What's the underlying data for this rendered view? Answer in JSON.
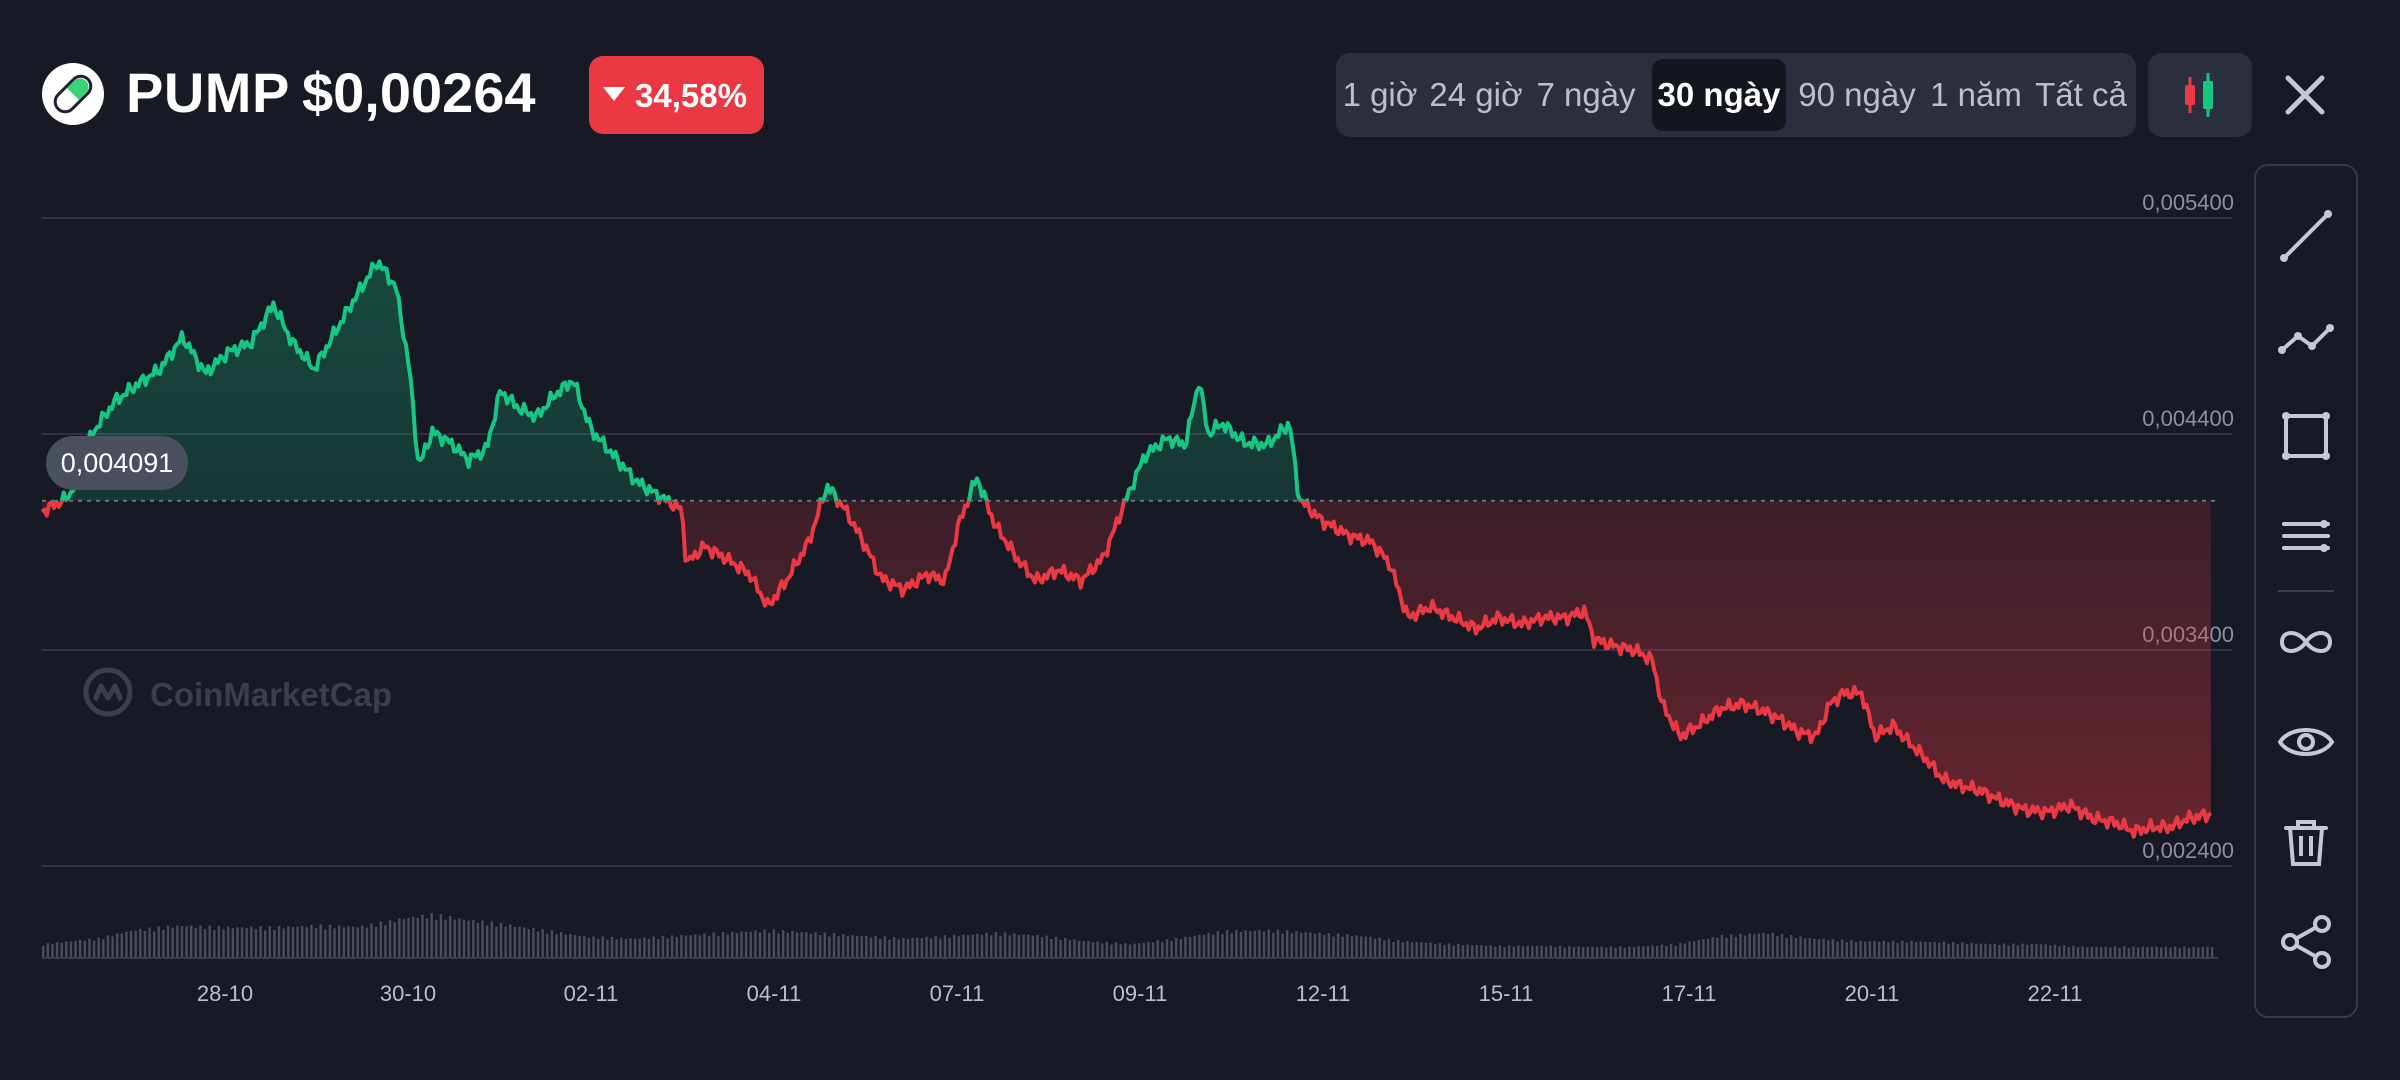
{
  "header": {
    "coin_symbol": "PUMP",
    "price": "$0,00264",
    "change_percent": "34,58%",
    "change_direction": "down",
    "close_icon": "close-icon",
    "chart_type_icon": "candlestick-icon"
  },
  "time_ranges": [
    {
      "label": "1 giờ",
      "active": false
    },
    {
      "label": "24 giờ",
      "active": false
    },
    {
      "label": "7 ngày",
      "active": false
    },
    {
      "label": "30 ngày",
      "active": true
    },
    {
      "label": "90 ngày",
      "active": false
    },
    {
      "label": "1 năm",
      "active": false
    },
    {
      "label": "Tất cả",
      "active": false
    }
  ],
  "toolbar": {
    "tools": [
      "trend-line-icon",
      "polyline-icon",
      "rectangle-icon",
      "horizontal-lines-icon",
      "infinity-icon",
      "eye-icon",
      "trash-icon",
      "share-icon"
    ]
  },
  "watermark": "CoinMarketCap",
  "colors": {
    "up": "#16c784",
    "down": "#ea3943",
    "background": "#171924",
    "badge": "#ea3943"
  },
  "chart_data": {
    "type": "line",
    "title": "",
    "xlabel": "",
    "ylabel": "",
    "reference_value": 0.004091,
    "reference_label": "0,004091",
    "ylim": [
      0.0024,
      0.0054
    ],
    "y_ticks": [
      {
        "value": 0.0054,
        "label": "0,005400"
      },
      {
        "value": 0.0044,
        "label": "0,004400"
      },
      {
        "value": 0.0034,
        "label": "0,003400"
      },
      {
        "value": 0.0024,
        "label": "0,002400"
      }
    ],
    "x_ticks": [
      {
        "label": "28-10",
        "day": 2
      },
      {
        "label": "30-10",
        "day": 4
      },
      {
        "label": "02-11",
        "day": 6
      },
      {
        "label": "04-11",
        "day": 8
      },
      {
        "label": "07-11",
        "day": 10
      },
      {
        "label": "09-11",
        "day": 12
      },
      {
        "label": "12-11",
        "day": 14
      },
      {
        "label": "15-11",
        "day": 16
      },
      {
        "label": "17-11",
        "day": 18
      },
      {
        "label": "20-11",
        "day": 20
      },
      {
        "label": "22-11",
        "day": 22
      }
    ],
    "x_range_days": [
      0,
      24
    ],
    "price_series": [
      [
        0.0,
        0.00404
      ],
      [
        0.3,
        0.00411
      ],
      [
        0.55,
        0.0044
      ],
      [
        0.8,
        0.00455
      ],
      [
        1.05,
        0.00463
      ],
      [
        1.3,
        0.0047
      ],
      [
        1.55,
        0.00485
      ],
      [
        1.8,
        0.00468
      ],
      [
        2.05,
        0.00478
      ],
      [
        2.3,
        0.00482
      ],
      [
        2.55,
        0.005
      ],
      [
        2.75,
        0.00483
      ],
      [
        3.0,
        0.0047
      ],
      [
        3.2,
        0.00485
      ],
      [
        3.45,
        0.00503
      ],
      [
        3.7,
        0.0052
      ],
      [
        3.9,
        0.00508
      ],
      [
        4.05,
        0.0047
      ],
      [
        4.15,
        0.00425
      ],
      [
        4.3,
        0.00441
      ],
      [
        4.5,
        0.00436
      ],
      [
        4.7,
        0.00428
      ],
      [
        4.9,
        0.00433
      ],
      [
        5.05,
        0.0046
      ],
      [
        5.25,
        0.00452
      ],
      [
        5.45,
        0.00448
      ],
      [
        5.65,
        0.00458
      ],
      [
        5.85,
        0.00465
      ],
      [
        6.05,
        0.00442
      ],
      [
        6.3,
        0.0043
      ],
      [
        6.55,
        0.00418
      ],
      [
        6.85,
        0.0041
      ],
      [
        7.05,
        0.00405
      ],
      [
        7.1,
        0.0038
      ],
      [
        7.3,
        0.00388
      ],
      [
        7.55,
        0.00382
      ],
      [
        7.8,
        0.00375
      ],
      [
        8.0,
        0.0036
      ],
      [
        8.2,
        0.00372
      ],
      [
        8.45,
        0.0039
      ],
      [
        8.65,
        0.00416
      ],
      [
        8.85,
        0.00405
      ],
      [
        9.05,
        0.0039
      ],
      [
        9.25,
        0.00373
      ],
      [
        9.5,
        0.00368
      ],
      [
        9.75,
        0.00375
      ],
      [
        9.95,
        0.00372
      ],
      [
        10.1,
        0.00398
      ],
      [
        10.3,
        0.0042
      ],
      [
        10.5,
        0.00398
      ],
      [
        10.75,
        0.00382
      ],
      [
        10.95,
        0.00372
      ],
      [
        11.2,
        0.00377
      ],
      [
        11.45,
        0.00372
      ],
      [
        11.7,
        0.00383
      ],
      [
        11.9,
        0.00405
      ],
      [
        12.15,
        0.0043
      ],
      [
        12.4,
        0.00438
      ],
      [
        12.6,
        0.00435
      ],
      [
        12.75,
        0.00465
      ],
      [
        12.85,
        0.0044
      ],
      [
        13.0,
        0.00445
      ],
      [
        13.25,
        0.00436
      ],
      [
        13.5,
        0.00435
      ],
      [
        13.75,
        0.00445
      ],
      [
        13.85,
        0.0041
      ],
      [
        14.1,
        0.004
      ],
      [
        14.4,
        0.00393
      ],
      [
        14.65,
        0.0039
      ],
      [
        14.85,
        0.0038
      ],
      [
        15.05,
        0.00355
      ],
      [
        15.3,
        0.0036
      ],
      [
        15.55,
        0.00355
      ],
      [
        15.8,
        0.0035
      ],
      [
        16.05,
        0.00355
      ],
      [
        16.3,
        0.00352
      ],
      [
        16.55,
        0.00355
      ],
      [
        16.8,
        0.00355
      ],
      [
        17.0,
        0.00358
      ],
      [
        17.1,
        0.00345
      ],
      [
        17.3,
        0.00342
      ],
      [
        17.55,
        0.0034
      ],
      [
        17.75,
        0.00335
      ],
      [
        17.85,
        0.00315
      ],
      [
        18.05,
        0.003
      ],
      [
        18.25,
        0.00305
      ],
      [
        18.5,
        0.00313
      ],
      [
        18.75,
        0.00315
      ],
      [
        18.95,
        0.00312
      ],
      [
        19.15,
        0.00308
      ],
      [
        19.35,
        0.00302
      ],
      [
        19.55,
        0.003
      ],
      [
        19.7,
        0.00315
      ],
      [
        19.85,
        0.0032
      ],
      [
        20.05,
        0.0032
      ],
      [
        20.2,
        0.003
      ],
      [
        20.4,
        0.00305
      ],
      [
        20.55,
        0.00298
      ],
      [
        20.75,
        0.0029
      ],
      [
        20.95,
        0.0028
      ],
      [
        21.15,
        0.00277
      ],
      [
        21.35,
        0.00275
      ],
      [
        21.6,
        0.0027
      ],
      [
        21.85,
        0.00266
      ],
      [
        22.1,
        0.00265
      ],
      [
        22.35,
        0.00268
      ],
      [
        22.6,
        0.00262
      ],
      [
        22.85,
        0.0026
      ],
      [
        23.05,
        0.00256
      ],
      [
        23.25,
        0.00258
      ],
      [
        23.45,
        0.00258
      ],
      [
        23.65,
        0.00262
      ],
      [
        23.9,
        0.00264
      ]
    ],
    "volume_series": [
      [
        0.0,
        0.25
      ],
      [
        0.6,
        0.35
      ],
      [
        1.0,
        0.5
      ],
      [
        1.5,
        0.58
      ],
      [
        2.0,
        0.55
      ],
      [
        2.5,
        0.55
      ],
      [
        3.0,
        0.58
      ],
      [
        3.5,
        0.56
      ],
      [
        4.0,
        0.72
      ],
      [
        4.3,
        0.78
      ],
      [
        4.6,
        0.7
      ],
      [
        5.0,
        0.62
      ],
      [
        5.5,
        0.5
      ],
      [
        6.0,
        0.38
      ],
      [
        6.5,
        0.35
      ],
      [
        7.0,
        0.4
      ],
      [
        7.5,
        0.45
      ],
      [
        8.0,
        0.5
      ],
      [
        8.5,
        0.45
      ],
      [
        9.0,
        0.4
      ],
      [
        9.5,
        0.35
      ],
      [
        10.0,
        0.4
      ],
      [
        10.5,
        0.45
      ],
      [
        11.0,
        0.4
      ],
      [
        11.5,
        0.3
      ],
      [
        12.0,
        0.25
      ],
      [
        12.5,
        0.35
      ],
      [
        13.0,
        0.48
      ],
      [
        13.5,
        0.5
      ],
      [
        14.0,
        0.45
      ],
      [
        14.5,
        0.4
      ],
      [
        15.0,
        0.3
      ],
      [
        15.5,
        0.25
      ],
      [
        16.0,
        0.22
      ],
      [
        16.5,
        0.22
      ],
      [
        17.0,
        0.2
      ],
      [
        17.5,
        0.2
      ],
      [
        18.0,
        0.25
      ],
      [
        18.5,
        0.4
      ],
      [
        19.0,
        0.45
      ],
      [
        19.5,
        0.35
      ],
      [
        20.0,
        0.3
      ],
      [
        20.5,
        0.3
      ],
      [
        21.0,
        0.28
      ],
      [
        21.5,
        0.25
      ],
      [
        22.0,
        0.25
      ],
      [
        22.5,
        0.2
      ],
      [
        23.0,
        0.2
      ],
      [
        23.5,
        0.2
      ],
      [
        23.9,
        0.2
      ]
    ]
  }
}
